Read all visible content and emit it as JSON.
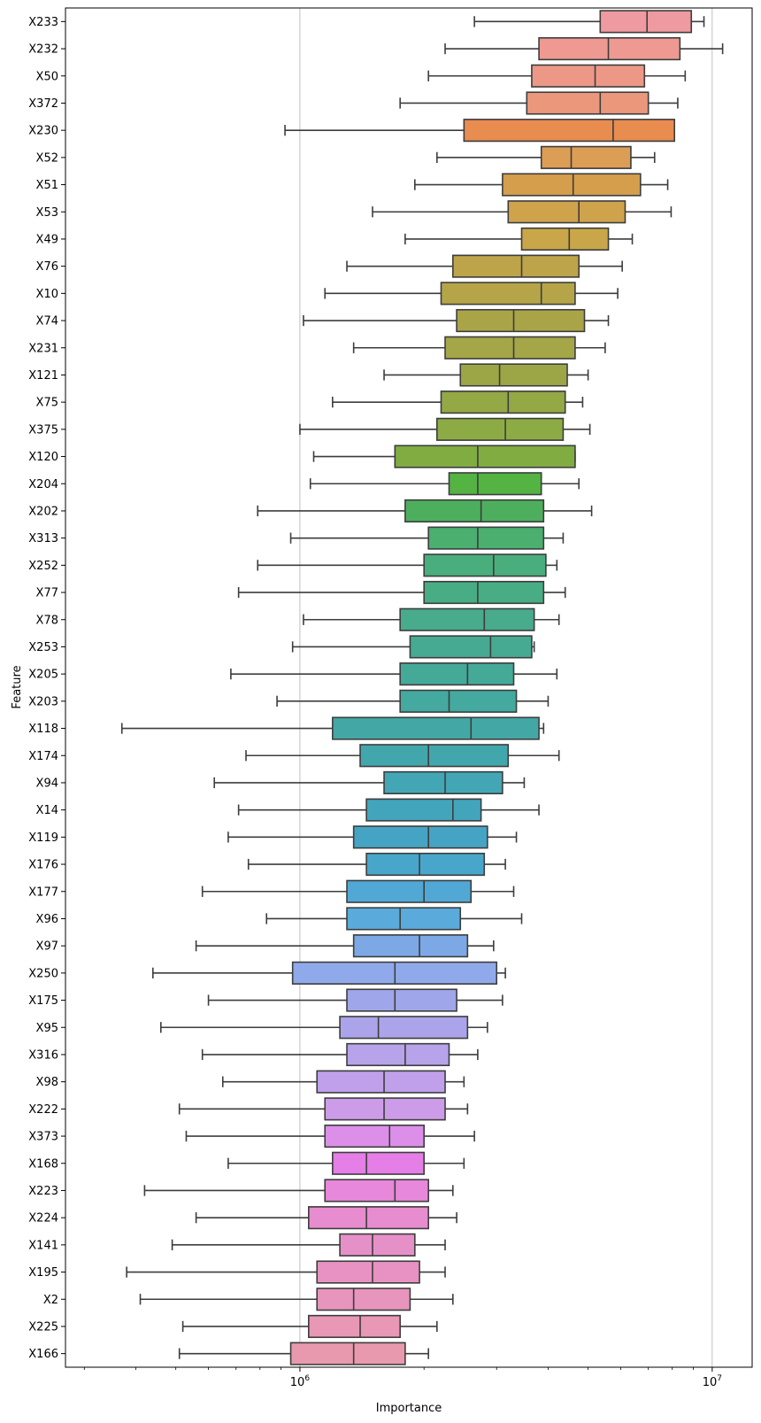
{
  "chart_data": {
    "type": "boxplot",
    "orientation": "horizontal",
    "xlabel": "Importance",
    "ylabel": "Feature",
    "x_scale": "log",
    "xlim": [
      270000,
      12500000
    ],
    "grid": "x-major",
    "x_ticks": [
      {
        "value": 1000000,
        "base": "10",
        "exp": "6"
      },
      {
        "value": 10000000,
        "base": "10",
        "exp": "7"
      }
    ],
    "series": [
      {
        "name": "X233",
        "whislo": 2650000,
        "q1": 5350000,
        "median": 6950000,
        "q3": 8900000,
        "whishi": 9550000,
        "color": "#ee9aa0"
      },
      {
        "name": "X232",
        "whislo": 2250000,
        "q1": 3800000,
        "median": 5600000,
        "q3": 8350000,
        "whishi": 10600000,
        "color": "#ee9a92"
      },
      {
        "name": "X50",
        "whislo": 2050000,
        "q1": 3650000,
        "median": 5200000,
        "q3": 6850000,
        "whishi": 8600000,
        "color": "#ed9886"
      },
      {
        "name": "X372",
        "whislo": 1750000,
        "q1": 3550000,
        "median": 5350000,
        "q3": 7000000,
        "whishi": 8250000,
        "color": "#eb977c"
      },
      {
        "name": "X230",
        "whislo": 920000,
        "q1": 2500000,
        "median": 5750000,
        "q3": 8100000,
        "whishi": 8100000,
        "color": "#e88c50"
      },
      {
        "name": "X52",
        "whislo": 2150000,
        "q1": 3850000,
        "median": 4550000,
        "q3": 6350000,
        "whishi": 7250000,
        "color": "#dc9d56"
      },
      {
        "name": "X51",
        "whislo": 1900000,
        "q1": 3100000,
        "median": 4600000,
        "q3": 6700000,
        "whishi": 7800000,
        "color": "#d49e4c"
      },
      {
        "name": "X53",
        "whislo": 1500000,
        "q1": 3200000,
        "median": 4750000,
        "q3": 6150000,
        "whishi": 7950000,
        "color": "#cfa24c"
      },
      {
        "name": "X49",
        "whislo": 1800000,
        "q1": 3450000,
        "median": 4500000,
        "q3": 5600000,
        "whishi": 6400000,
        "color": "#c9a64a"
      },
      {
        "name": "X76",
        "whislo": 1300000,
        "q1": 2350000,
        "median": 3450000,
        "q3": 4750000,
        "whishi": 6050000,
        "color": "#bda44a"
      },
      {
        "name": "X10",
        "whislo": 1150000,
        "q1": 2200000,
        "median": 3850000,
        "q3": 4650000,
        "whishi": 5900000,
        "color": "#b5a548"
      },
      {
        "name": "X74",
        "whislo": 1020000,
        "q1": 2400000,
        "median": 3300000,
        "q3": 4900000,
        "whishi": 5600000,
        "color": "#aaa448"
      },
      {
        "name": "X231",
        "whislo": 1350000,
        "q1": 2250000,
        "median": 3300000,
        "q3": 4650000,
        "whishi": 5500000,
        "color": "#a4a648"
      },
      {
        "name": "X121",
        "whislo": 1600000,
        "q1": 2450000,
        "median": 3050000,
        "q3": 4450000,
        "whishi": 5000000,
        "color": "#9da647"
      },
      {
        "name": "X75",
        "whislo": 1200000,
        "q1": 2200000,
        "median": 3200000,
        "q3": 4400000,
        "whishi": 4850000,
        "color": "#94a846"
      },
      {
        "name": "X375",
        "whislo": 1000000,
        "q1": 2150000,
        "median": 3150000,
        "q3": 4350000,
        "whishi": 5050000,
        "color": "#8dab45"
      },
      {
        "name": "X120",
        "whislo": 1080000,
        "q1": 1700000,
        "median": 2700000,
        "q3": 4650000,
        "whishi": 4650000,
        "color": "#80ac42"
      },
      {
        "name": "X204",
        "whislo": 1060000,
        "q1": 2300000,
        "median": 2700000,
        "q3": 3850000,
        "whishi": 4750000,
        "color": "#54b343"
      },
      {
        "name": "X202",
        "whislo": 790000,
        "q1": 1800000,
        "median": 2750000,
        "q3": 3900000,
        "whishi": 5100000,
        "color": "#4daf5e"
      },
      {
        "name": "X313",
        "whislo": 950000,
        "q1": 2050000,
        "median": 2700000,
        "q3": 3900000,
        "whishi": 4350000,
        "color": "#4aaf6f"
      },
      {
        "name": "X252",
        "whislo": 790000,
        "q1": 2000000,
        "median": 2950000,
        "q3": 3950000,
        "whishi": 4200000,
        "color": "#49ae7c"
      },
      {
        "name": "X77",
        "whislo": 710000,
        "q1": 2000000,
        "median": 2700000,
        "q3": 3900000,
        "whishi": 4400000,
        "color": "#48ad84"
      },
      {
        "name": "X78",
        "whislo": 1020000,
        "q1": 1750000,
        "median": 2800000,
        "q3": 3700000,
        "whishi": 4250000,
        "color": "#47ab8c"
      },
      {
        "name": "X253",
        "whislo": 960000,
        "q1": 1850000,
        "median": 2900000,
        "q3": 3650000,
        "whishi": 3700000,
        "color": "#46aa92"
      },
      {
        "name": "X205",
        "whislo": 680000,
        "q1": 1750000,
        "median": 2550000,
        "q3": 3300000,
        "whishi": 4200000,
        "color": "#45a998"
      },
      {
        "name": "X203",
        "whislo": 880000,
        "q1": 1750000,
        "median": 2300000,
        "q3": 3350000,
        "whishi": 4000000,
        "color": "#44a99e"
      },
      {
        "name": "X118",
        "whislo": 370000,
        "q1": 1200000,
        "median": 2600000,
        "q3": 3800000,
        "whishi": 3900000,
        "color": "#43a8a5"
      },
      {
        "name": "X174",
        "whislo": 740000,
        "q1": 1400000,
        "median": 2050000,
        "q3": 3200000,
        "whishi": 4250000,
        "color": "#42a7ad"
      },
      {
        "name": "X94",
        "whislo": 620000,
        "q1": 1600000,
        "median": 2250000,
        "q3": 3100000,
        "whishi": 3500000,
        "color": "#42a6b4"
      },
      {
        "name": "X14",
        "whislo": 710000,
        "q1": 1450000,
        "median": 2350000,
        "q3": 2750000,
        "whishi": 3800000,
        "color": "#43a5bb"
      },
      {
        "name": "X119",
        "whislo": 670000,
        "q1": 1350000,
        "median": 2050000,
        "q3": 2850000,
        "whishi": 3350000,
        "color": "#45a4c3"
      },
      {
        "name": "X176",
        "whislo": 750000,
        "q1": 1450000,
        "median": 1950000,
        "q3": 2800000,
        "whishi": 3150000,
        "color": "#49a6cb"
      },
      {
        "name": "X177",
        "whislo": 580000,
        "q1": 1300000,
        "median": 2000000,
        "q3": 2600000,
        "whishi": 3300000,
        "color": "#51a8d5"
      },
      {
        "name": "X96",
        "whislo": 830000,
        "q1": 1300000,
        "median": 1750000,
        "q3": 2450000,
        "whishi": 3450000,
        "color": "#5aabdb"
      },
      {
        "name": "X97",
        "whislo": 560000,
        "q1": 1350000,
        "median": 1950000,
        "q3": 2550000,
        "whishi": 2950000,
        "color": "#7ca8e5"
      },
      {
        "name": "X250",
        "whislo": 440000,
        "q1": 960000,
        "median": 1700000,
        "q3": 3000000,
        "whishi": 3150000,
        "color": "#90a9ea"
      },
      {
        "name": "X175",
        "whislo": 600000,
        "q1": 1300000,
        "median": 1700000,
        "q3": 2400000,
        "whishi": 3100000,
        "color": "#9fa6ea"
      },
      {
        "name": "X95",
        "whislo": 460000,
        "q1": 1250000,
        "median": 1550000,
        "q3": 2550000,
        "whishi": 2850000,
        "color": "#aba4ea"
      },
      {
        "name": "X316",
        "whislo": 580000,
        "q1": 1300000,
        "median": 1800000,
        "q3": 2300000,
        "whishi": 2700000,
        "color": "#b7a3ea"
      },
      {
        "name": "X98",
        "whislo": 650000,
        "q1": 1100000,
        "median": 1600000,
        "q3": 2250000,
        "whishi": 2500000,
        "color": "#c0a0ea"
      },
      {
        "name": "X222",
        "whislo": 510000,
        "q1": 1150000,
        "median": 1600000,
        "q3": 2250000,
        "whishi": 2550000,
        "color": "#cd9ce8"
      },
      {
        "name": "X373",
        "whislo": 530000,
        "q1": 1150000,
        "median": 1650000,
        "q3": 2000000,
        "whishi": 2650000,
        "color": "#dc8fe8"
      },
      {
        "name": "X168",
        "whislo": 670000,
        "q1": 1200000,
        "median": 1450000,
        "q3": 2000000,
        "whishi": 2500000,
        "color": "#e57ee6"
      },
      {
        "name": "X223",
        "whislo": 420000,
        "q1": 1150000,
        "median": 1700000,
        "q3": 2050000,
        "whishi": 2350000,
        "color": "#e788da"
      },
      {
        "name": "X224",
        "whislo": 560000,
        "q1": 1050000,
        "median": 1450000,
        "q3": 2050000,
        "whishi": 2400000,
        "color": "#e78ccf"
      },
      {
        "name": "X141",
        "whislo": 490000,
        "q1": 1250000,
        "median": 1500000,
        "q3": 1900000,
        "whishi": 2250000,
        "color": "#e690c8"
      },
      {
        "name": "X195",
        "whislo": 380000,
        "q1": 1100000,
        "median": 1500000,
        "q3": 1950000,
        "whishi": 2250000,
        "color": "#e792c2"
      },
      {
        "name": "X2",
        "whislo": 410000,
        "q1": 1100000,
        "median": 1350000,
        "q3": 1850000,
        "whishi": 2350000,
        "color": "#e795bd"
      },
      {
        "name": "X225",
        "whislo": 520000,
        "q1": 1050000,
        "median": 1400000,
        "q3": 1750000,
        "whishi": 2150000,
        "color": "#e897b5"
      },
      {
        "name": "X166",
        "whislo": 510000,
        "q1": 950000,
        "median": 1350000,
        "q3": 1800000,
        "whishi": 2050000,
        "color": "#e899ad"
      }
    ]
  }
}
